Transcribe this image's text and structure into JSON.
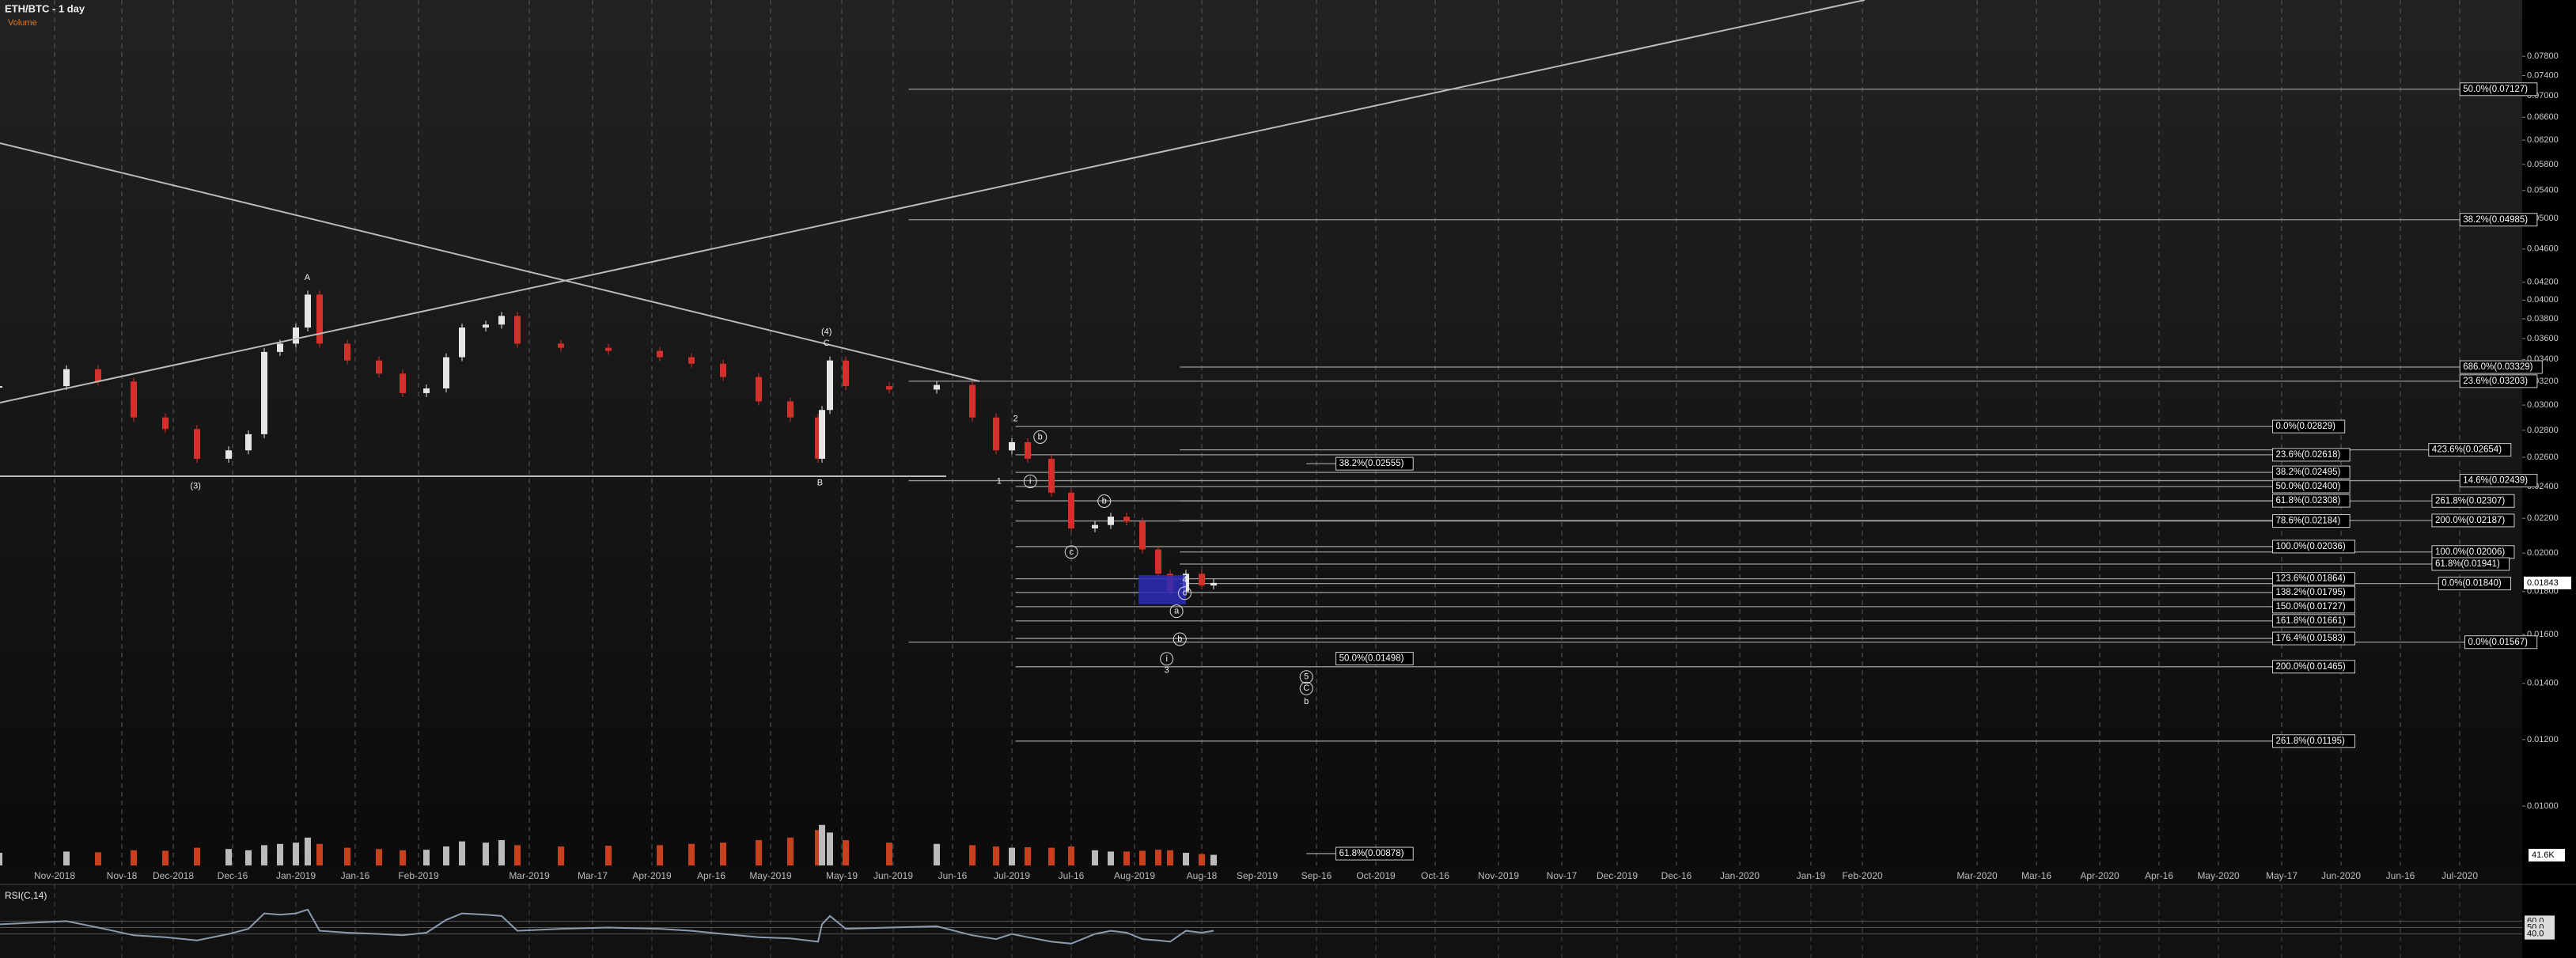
{
  "chart_data": {
    "type": "candlestick",
    "title": "ETH/BTC - 1 day",
    "volume_title": "Volume",
    "volume_label": "41.6K",
    "x": [
      "2018-10-18",
      "2018-11-04",
      "2018-11-12",
      "2018-11-21",
      "2018-11-29",
      "2018-12-07",
      "2018-12-15",
      "2018-12-20",
      "2018-12-24",
      "2018-12-28",
      "2019-01-01",
      "2019-01-04",
      "2019-01-07",
      "2019-01-14",
      "2019-01-22",
      "2019-01-28",
      "2019-02-03",
      "2019-02-08",
      "2019-02-12",
      "2019-02-18",
      "2019-02-22",
      "2019-02-26",
      "2019-03-09",
      "2019-03-21",
      "2019-04-03",
      "2019-04-11",
      "2019-04-19",
      "2019-04-28",
      "2019-05-06",
      "2019-05-13",
      "2019-05-14",
      "2019-05-16",
      "2019-05-20",
      "2019-05-31",
      "2019-06-12",
      "2019-06-21",
      "2019-06-27",
      "2019-07-01",
      "2019-07-05",
      "2019-07-11",
      "2019-07-16",
      "2019-07-22",
      "2019-07-26",
      "2019-07-30",
      "2019-08-03",
      "2019-08-07",
      "2019-08-10",
      "2019-08-14",
      "2019-08-18",
      "2019-08-21"
    ],
    "series": [
      {
        "values": [
          0.0316,
          0.0331,
          0.032,
          0.029,
          0.0281,
          0.0259,
          0.0265,
          0.0277,
          0.0347,
          0.0355,
          0.0371,
          0.0406,
          0.0355,
          0.0339,
          0.0327,
          0.031,
          0.0314,
          0.0342,
          0.0371,
          0.0374,
          0.0383,
          0.0355,
          0.0351,
          0.0348,
          0.0342,
          0.0336,
          0.0324,
          0.0303,
          0.029,
          0.0259,
          0.0296,
          0.0339,
          0.0316,
          0.0313,
          0.0317,
          0.029,
          0.0265,
          0.0271,
          0.0259,
          0.0236,
          0.0214,
          0.0216,
          0.0221,
          0.0218,
          0.0202,
          0.0189,
          0.018,
          0.0189,
          0.0183,
          0.01843
        ],
        "up_color": "#e6e6e6",
        "down_color": "#d1302b"
      }
    ],
    "volume": {
      "values": [
        50,
        55,
        52,
        60,
        58,
        70,
        65,
        60,
        80,
        85,
        90,
        110,
        85,
        70,
        65,
        60,
        62,
        75,
        95,
        90,
        100,
        80,
        75,
        78,
        80,
        85,
        90,
        100,
        110,
        140,
        160,
        130,
        100,
        90,
        85,
        80,
        75,
        70,
        72,
        70,
        75,
        60,
        55,
        55,
        58,
        62,
        60,
        50,
        45,
        42
      ],
      "color": "#c8401e",
      "up_color": "#bbbbbb"
    },
    "rsi": {
      "title": "RSI(C,14)",
      "values": [
        55,
        60,
        50,
        38,
        35,
        30,
        40,
        48,
        72,
        70,
        72,
        78,
        45,
        42,
        40,
        38,
        42,
        62,
        72,
        70,
        68,
        45,
        48,
        50,
        48,
        45,
        40,
        35,
        33,
        28,
        55,
        68,
        48,
        50,
        52,
        38,
        32,
        40,
        35,
        28,
        25,
        40,
        45,
        42,
        32,
        30,
        28,
        45,
        42,
        45
      ],
      "color": "#8a9bb0",
      "ylim": [
        10,
        90
      ],
      "yticks": [
        {
          "value": 60,
          "label": "60.0"
        },
        {
          "value": 50,
          "label": "50.0"
        },
        {
          "value": 40,
          "label": "40.0"
        }
      ]
    },
    "log_scale": true,
    "ylim": [
      0.0085,
      0.091
    ],
    "yticks": [
      {
        "value": 0.01,
        "label": "0.01000"
      },
      {
        "value": 0.012,
        "label": "0.01200"
      },
      {
        "value": 0.014,
        "label": "0.01400"
      },
      {
        "value": 0.016,
        "label": "0.01600"
      },
      {
        "value": 0.018,
        "label": "0.01800"
      },
      {
        "value": 0.02,
        "label": "0.02000"
      },
      {
        "value": 0.022,
        "label": "0.02200"
      },
      {
        "value": 0.024,
        "label": "0.02400"
      },
      {
        "value": 0.026,
        "label": "0.02600"
      },
      {
        "value": 0.028,
        "label": "0.02800"
      },
      {
        "value": 0.03,
        "label": "0.03000"
      },
      {
        "value": 0.032,
        "label": "0.03200"
      },
      {
        "value": 0.034,
        "label": "0.03400"
      },
      {
        "value": 0.036,
        "label": "0.03600"
      },
      {
        "value": 0.038,
        "label": "0.03800"
      },
      {
        "value": 0.04,
        "label": "0.04000"
      },
      {
        "value": 0.042,
        "label": "0.04200"
      },
      {
        "value": 0.046,
        "label": "0.04600"
      },
      {
        "value": 0.05,
        "label": "0.05000"
      },
      {
        "value": 0.054,
        "label": "0.05400"
      },
      {
        "value": 0.058,
        "label": "0.05800"
      },
      {
        "value": 0.062,
        "label": "0.06200"
      },
      {
        "value": 0.066,
        "label": "0.06600"
      },
      {
        "value": 0.07,
        "label": "0.07000"
      },
      {
        "value": 0.074,
        "label": "0.07400"
      },
      {
        "value": 0.078,
        "label": "0.07800"
      }
    ],
    "xticks": [
      {
        "value": "2018-11-01",
        "label": "Nov-2018"
      },
      {
        "value": "2018-11-18",
        "label": "Nov-18"
      },
      {
        "value": "2018-12-01",
        "label": "Dec-2018"
      },
      {
        "value": "2018-12-16",
        "label": "Dec-16"
      },
      {
        "value": "2019-01-01",
        "label": "Jan-2019"
      },
      {
        "value": "2019-01-16",
        "label": "Jan-16"
      },
      {
        "value": "2019-02-01",
        "label": "Feb-2019"
      },
      {
        "value": "2019-03-01",
        "label": "Mar-2019"
      },
      {
        "value": "2019-03-17",
        "label": "Mar-17"
      },
      {
        "value": "2019-04-01",
        "label": "Apr-2019"
      },
      {
        "value": "2019-04-16",
        "label": "Apr-16"
      },
      {
        "value": "2019-05-01",
        "label": "May-2019"
      },
      {
        "value": "2019-05-19",
        "label": "May-19"
      },
      {
        "value": "2019-06-01",
        "label": "Jun-2019"
      },
      {
        "value": "2019-06-16",
        "label": "Jun-16"
      },
      {
        "value": "2019-07-01",
        "label": "Jul-2019"
      },
      {
        "value": "2019-07-16",
        "label": "Jul-16"
      },
      {
        "value": "2019-08-01",
        "label": "Aug-2019"
      },
      {
        "value": "2019-08-18",
        "label": "Aug-18"
      },
      {
        "value": "2019-09-01",
        "label": "Sep-2019"
      },
      {
        "value": "2019-09-16",
        "label": "Sep-16"
      },
      {
        "value": "2019-10-01",
        "label": "Oct-2019"
      },
      {
        "value": "2019-10-16",
        "label": "Oct-16"
      },
      {
        "value": "2019-11-01",
        "label": "Nov-2019"
      },
      {
        "value": "2019-11-17",
        "label": "Nov-17"
      },
      {
        "value": "2019-12-01",
        "label": "Dec-2019"
      },
      {
        "value": "2019-12-16",
        "label": "Dec-16"
      },
      {
        "value": "2020-01-01",
        "label": "Jan-2020"
      },
      {
        "value": "2020-01-19",
        "label": "Jan-19"
      },
      {
        "value": "2020-02-01",
        "label": "Feb-2020"
      },
      {
        "value": "2020-03-01",
        "label": "Mar-2020"
      },
      {
        "value": "2020-03-16",
        "label": "Mar-16"
      },
      {
        "value": "2020-04-01",
        "label": "Apr-2020"
      },
      {
        "value": "2020-04-16",
        "label": "Apr-16"
      },
      {
        "value": "2020-05-01",
        "label": "May-2020"
      },
      {
        "value": "2020-05-17",
        "label": "May-17"
      },
      {
        "value": "2020-06-01",
        "label": "Jun-2020"
      },
      {
        "value": "2020-06-16",
        "label": "Jun-16"
      },
      {
        "value": "2020-07-01",
        "label": "Jul-2020"
      }
    ],
    "grid": true,
    "levels": [
      {
        "label": "50.0%(0.07127)",
        "value": 0.07127
      },
      {
        "label": "38.2%(0.04985)",
        "value": 0.04985
      },
      {
        "label": "686.0%(0.03329)",
        "value": 0.03329
      },
      {
        "label": "23.6%(0.03203)",
        "value": 0.03203
      },
      {
        "label": "423.6%(0.02654)",
        "value": 0.02654
      },
      {
        "label": "14.6%(0.02439)",
        "value": 0.02439
      },
      {
        "label": "261.8%(0.02307)",
        "value": 0.02307
      },
      {
        "label": "200.0%(0.02187)",
        "value": 0.02187
      },
      {
        "label": "100.0%(0.02006)",
        "value": 0.02006
      },
      {
        "label": "61.8%(0.01941)",
        "value": 0.01941
      },
      {
        "label": "0.0%(0.01840)",
        "value": 0.0184
      },
      {
        "label": "0.0%(0.01567)",
        "value": 0.01567
      },
      {
        "label": "0.0%(0.02829)",
        "value": 0.02829
      },
      {
        "label": "23.6%(0.02618)",
        "value": 0.02618
      },
      {
        "label": "38.2%(0.02495)",
        "value": 0.02495
      },
      {
        "label": "50.0%(0.02400)",
        "value": 0.024
      },
      {
        "label": "61.8%(0.02308)",
        "value": 0.02308
      },
      {
        "label": "78.6%(0.02184)",
        "value": 0.02184
      },
      {
        "label": "100.0%(0.02036)",
        "value": 0.02036
      },
      {
        "label": "123.6%(0.01864)",
        "value": 0.01864
      },
      {
        "label": "138.2%(0.01795)",
        "value": 0.01795
      },
      {
        "label": "150.0%(0.01727)",
        "value": 0.01727
      },
      {
        "label": "161.8%(0.01661)",
        "value": 0.01661
      },
      {
        "label": "176.4%(0.01583)",
        "value": 0.01583
      },
      {
        "label": "200.0%(0.01465)",
        "value": 0.01465
      },
      {
        "label": "261.8%(0.01195)",
        "value": 0.01195
      },
      {
        "label": "38.2%(0.02555)",
        "value": 0.02555
      },
      {
        "label": "50.0%(0.01498)",
        "value": 0.01498
      },
      {
        "label": "61.8%(0.00878)",
        "value": 0.00878
      }
    ],
    "annotations": [
      "A",
      "(3)",
      "(4)",
      "C",
      "B",
      "1",
      "2",
      "3",
      "4",
      "b",
      "b",
      "i",
      "c",
      "b",
      "c",
      "a",
      "b",
      "i",
      "5",
      "C"
    ]
  }
}
